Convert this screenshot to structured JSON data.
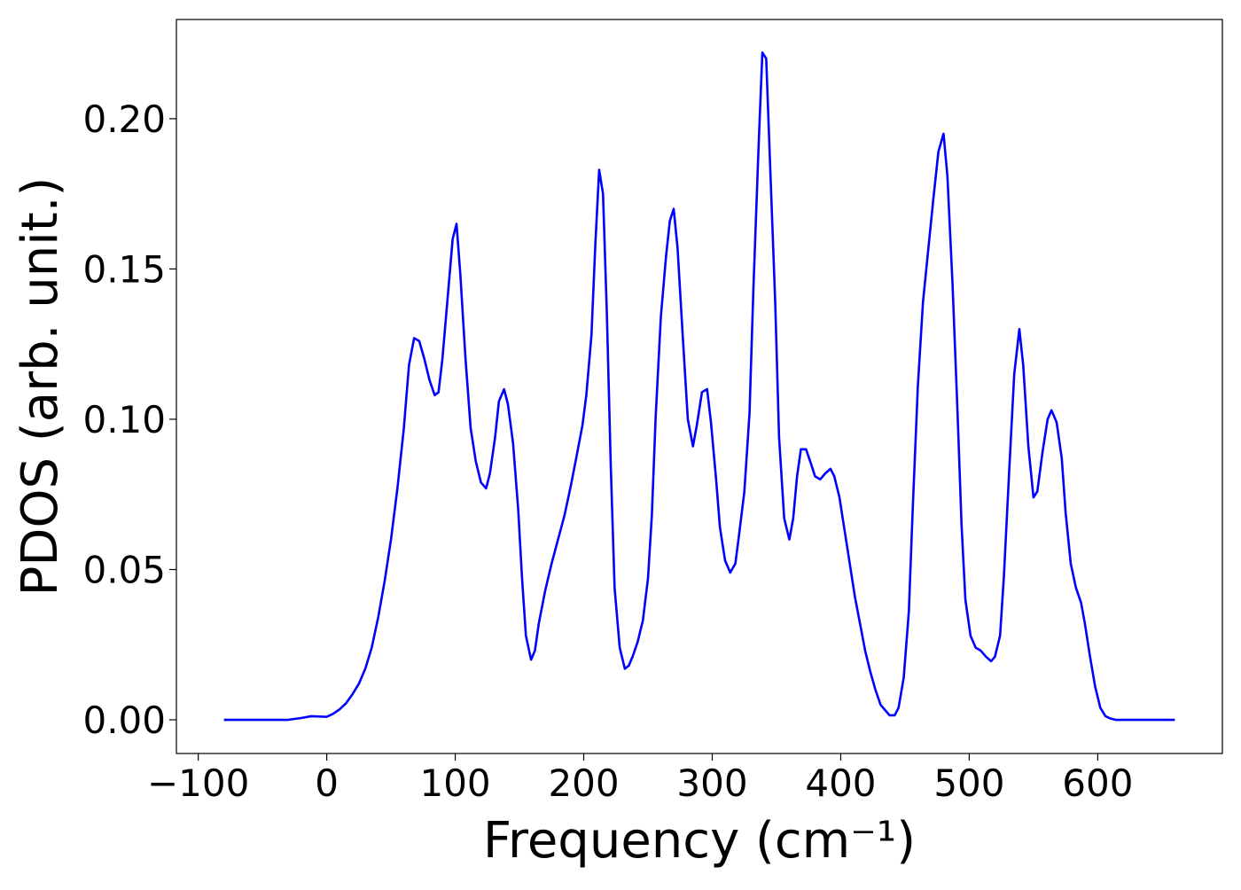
{
  "chart_data": {
    "type": "line",
    "xlabel": "Frequency (cm⁻¹)",
    "ylabel": "PDOS (arb. unit.)",
    "color": "#0000ff",
    "xlim": [
      -117,
      697
    ],
    "ylim": [
      -0.0112,
      0.233
    ],
    "xticks": [
      {
        "value": -100,
        "label": "−100"
      },
      0,
      100,
      200,
      300,
      400,
      500,
      600
    ],
    "yticks": [
      {
        "value": 0,
        "label": "0.00"
      },
      {
        "value": 0.05,
        "label": "0.05"
      },
      {
        "value": 0.1,
        "label": "0.10"
      },
      {
        "value": 0.15,
        "label": "0.15"
      },
      {
        "value": 0.2,
        "label": "0.20"
      }
    ],
    "x": [
      -80,
      -30,
      -20,
      -12,
      0,
      5,
      10,
      15,
      20,
      25,
      30,
      35,
      40,
      45,
      50,
      55,
      60,
      64,
      68,
      72,
      76,
      80,
      84,
      87,
      90,
      94,
      98,
      101,
      104,
      108,
      112,
      116,
      120,
      124,
      127,
      131,
      134,
      138,
      141,
      145,
      149,
      152,
      155,
      159,
      162,
      165,
      170,
      175,
      180,
      185,
      190,
      195,
      199,
      202,
      206,
      209,
      212,
      215,
      218,
      221,
      224,
      228,
      232,
      235,
      238,
      242,
      246,
      250,
      253,
      256,
      260,
      264,
      267,
      270,
      273,
      277,
      281,
      285,
      288,
      292,
      296,
      299,
      303,
      306,
      310,
      314,
      318,
      321,
      325,
      329,
      332,
      336,
      339,
      342,
      345,
      349,
      352,
      356,
      360,
      363,
      366,
      369,
      373,
      377,
      380,
      384,
      388,
      392,
      395,
      399,
      403,
      407,
      411,
      415,
      419,
      423,
      427,
      431,
      435,
      438,
      442,
      445,
      449,
      453,
      456,
      460,
      464,
      468,
      472,
      476,
      480,
      483,
      487,
      491,
      494,
      497,
      501,
      505,
      509,
      513,
      517,
      520,
      524,
      527,
      531,
      535,
      539,
      542,
      546,
      550,
      553,
      557,
      561,
      564,
      568,
      572,
      575,
      579,
      583,
      587,
      590,
      594,
      598,
      602,
      606,
      610,
      614,
      660
    ],
    "values": [
      0,
      0,
      0.0006,
      0.0012,
      0.001,
      0.002,
      0.0035,
      0.0055,
      0.0085,
      0.012,
      0.017,
      0.024,
      0.034,
      0.046,
      0.06,
      0.077,
      0.097,
      0.118,
      0.127,
      0.126,
      0.12,
      0.113,
      0.108,
      0.109,
      0.12,
      0.14,
      0.16,
      0.165,
      0.148,
      0.12,
      0.097,
      0.086,
      0.079,
      0.077,
      0.082,
      0.094,
      0.106,
      0.11,
      0.105,
      0.092,
      0.07,
      0.047,
      0.028,
      0.02,
      0.023,
      0.032,
      0.043,
      0.052,
      0.06,
      0.068,
      0.078,
      0.089,
      0.098,
      0.108,
      0.128,
      0.158,
      0.183,
      0.175,
      0.135,
      0.085,
      0.044,
      0.024,
      0.017,
      0.018,
      0.021,
      0.026,
      0.033,
      0.047,
      0.068,
      0.101,
      0.134,
      0.154,
      0.166,
      0.17,
      0.157,
      0.128,
      0.1,
      0.091,
      0.098,
      0.109,
      0.11,
      0.099,
      0.08,
      0.064,
      0.053,
      0.049,
      0.052,
      0.062,
      0.076,
      0.102,
      0.143,
      0.19,
      0.222,
      0.22,
      0.185,
      0.139,
      0.094,
      0.067,
      0.06,
      0.067,
      0.081,
      0.09,
      0.09,
      0.085,
      0.081,
      0.08,
      0.082,
      0.0835,
      0.081,
      0.074,
      0.063,
      0.052,
      0.041,
      0.032,
      0.023,
      0.016,
      0.01,
      0.005,
      0.003,
      0.0015,
      0.0015,
      0.004,
      0.014,
      0.036,
      0.07,
      0.111,
      0.139,
      0.156,
      0.173,
      0.189,
      0.195,
      0.181,
      0.145,
      0.101,
      0.065,
      0.04,
      0.028,
      0.024,
      0.023,
      0.021,
      0.0195,
      0.021,
      0.028,
      0.048,
      0.082,
      0.115,
      0.13,
      0.118,
      0.091,
      0.074,
      0.076,
      0.089,
      0.1,
      0.103,
      0.099,
      0.087,
      0.069,
      0.052,
      0.044,
      0.039,
      0.032,
      0.021,
      0.011,
      0.004,
      0.0012,
      0.0004,
      0,
      0
    ]
  }
}
